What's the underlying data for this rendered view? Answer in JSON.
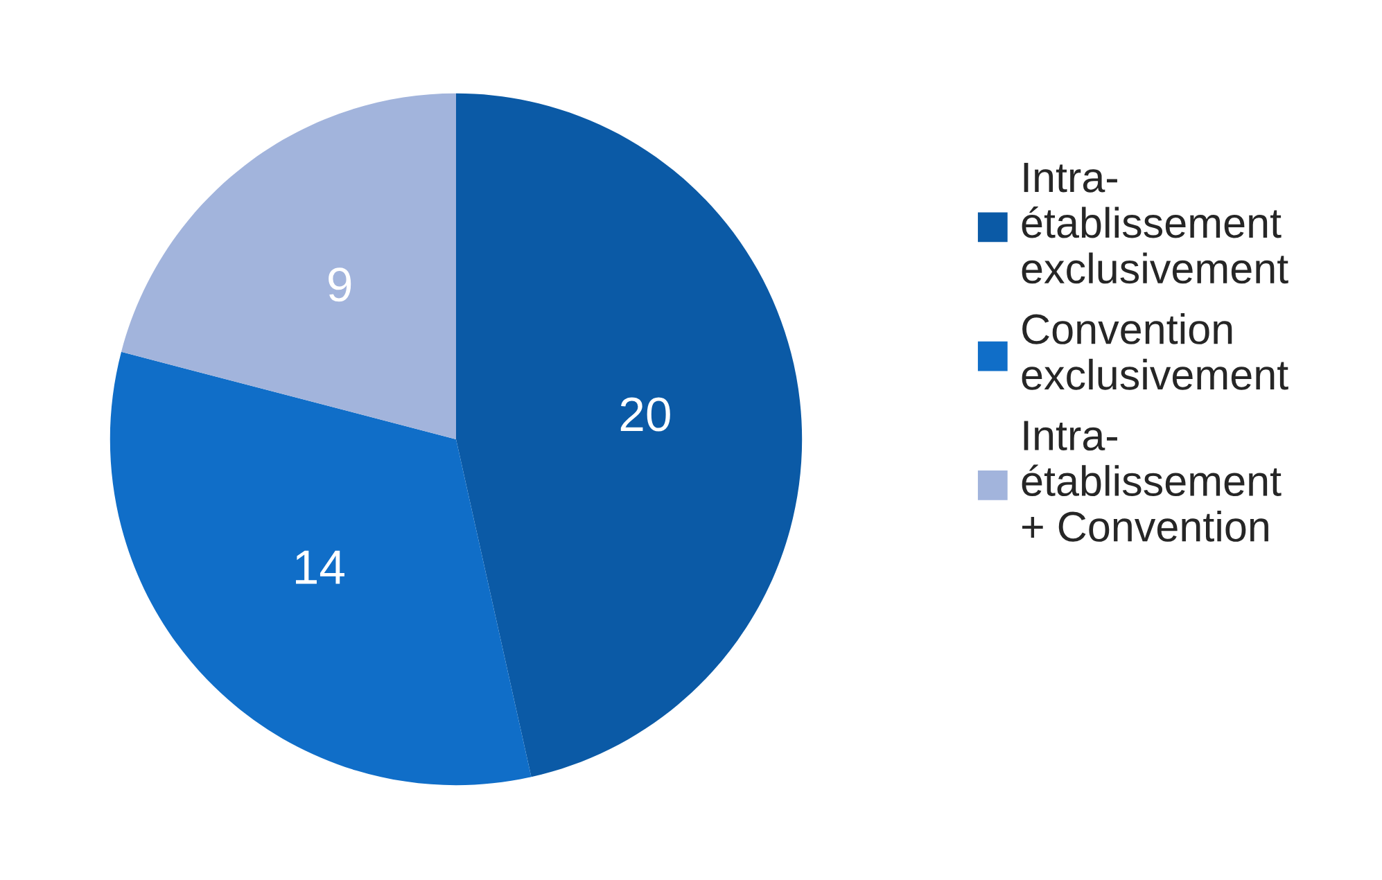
{
  "chart_data": {
    "type": "pie",
    "categories": [
      "Intra-\nétablissement\nexclusivement",
      "Convention\nexclusivement",
      "Intra-\nétablissement\n+ Convention"
    ],
    "values": [
      20,
      14,
      9
    ],
    "colors": [
      "#0b5aa6",
      "#106ec8",
      "#a2b4dc"
    ],
    "data_labels": true,
    "legend": "right"
  }
}
